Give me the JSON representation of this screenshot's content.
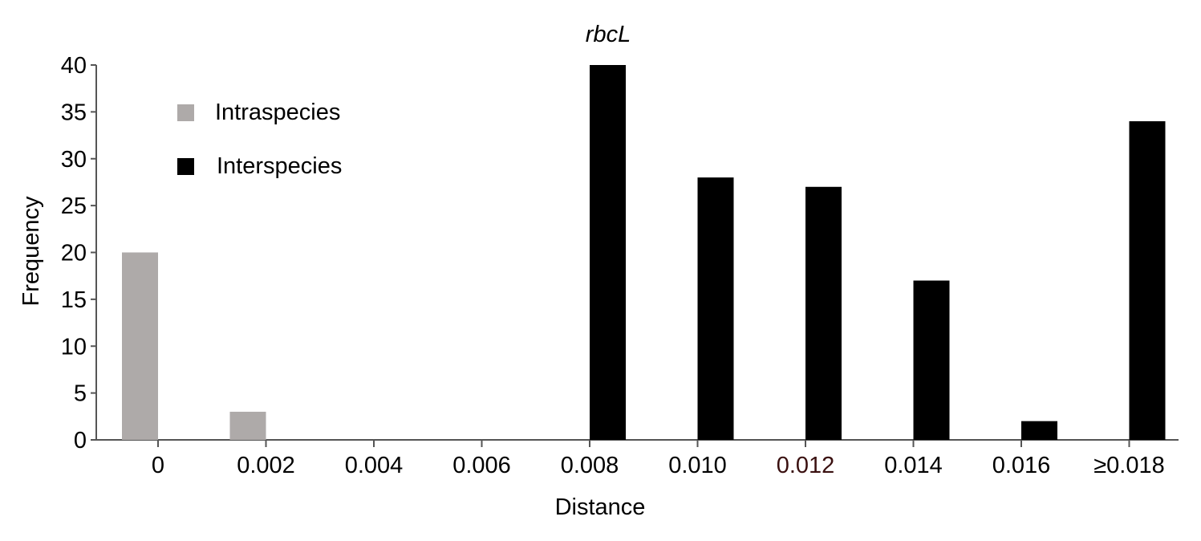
{
  "chart_data": {
    "type": "bar",
    "title": "rbcL",
    "xlabel": "Distance",
    "ylabel": "Frequency",
    "ylim": [
      0,
      40
    ],
    "yticks": [
      "0",
      "5",
      "10",
      "15",
      "20",
      "25",
      "30",
      "35",
      "40"
    ],
    "categories": [
      "0",
      "0.002",
      "0.004",
      "0.006",
      "0.008",
      "0.010",
      "0.012",
      "0.014",
      "0.016",
      "≥0.018"
    ],
    "series": [
      {
        "name": "Intraspecies",
        "color": "#aeaaa9",
        "values": [
          20,
          3,
          0,
          0,
          0,
          0,
          0,
          0,
          0,
          0
        ]
      },
      {
        "name": "Interspecies",
        "color": "#000000",
        "values": [
          0,
          0,
          0,
          0,
          40,
          28,
          27,
          17,
          2,
          34
        ]
      }
    ],
    "highlight_tick_color": {
      "category": "0.012",
      "color": "#3a1010"
    },
    "legend_position": "top-left",
    "grid": false
  }
}
